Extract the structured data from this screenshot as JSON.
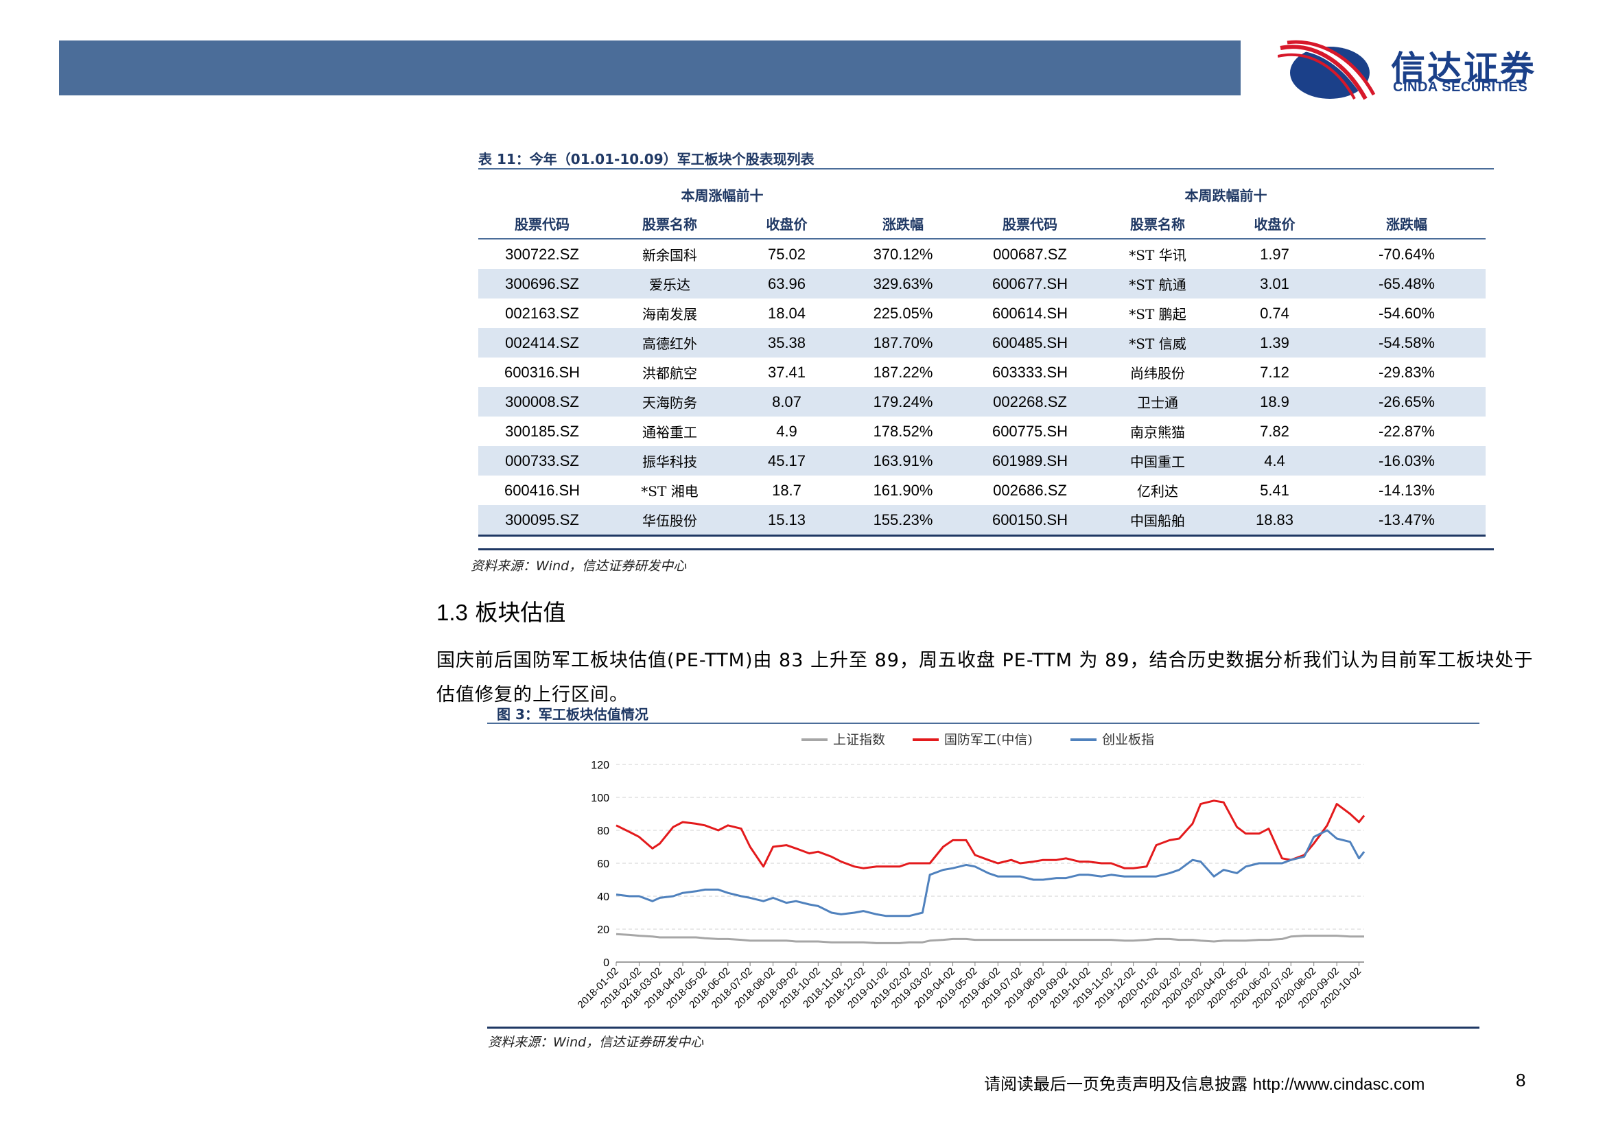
{
  "brand": {
    "name_cn": "信达证券",
    "name_en": "CINDA SECURITIES",
    "colors": {
      "header_bar": "#4b6d99",
      "logo_red": "#d7182a",
      "logo_blue": "#1b4089",
      "table_shade": "#dbe5f1"
    }
  },
  "table": {
    "caption": "表 11：今年（01.01-10.09）军工板块个股表现列表",
    "group_left": "本周涨幅前十",
    "group_right": "本周跌幅前十",
    "columns": [
      "股票代码",
      "股票名称",
      "收盘价",
      "涨跌幅",
      "股票代码",
      "股票名称",
      "收盘价",
      "涨跌幅"
    ],
    "rows": [
      [
        "300722.SZ",
        "新余国科",
        "75.02",
        "370.12%",
        "000687.SZ",
        "*ST 华讯",
        "1.97",
        "-70.64%"
      ],
      [
        "300696.SZ",
        "爱乐达",
        "63.96",
        "329.63%",
        "600677.SH",
        "*ST 航通",
        "3.01",
        "-65.48%"
      ],
      [
        "002163.SZ",
        "海南发展",
        "18.04",
        "225.05%",
        "600614.SH",
        "*ST 鹏起",
        "0.74",
        "-54.60%"
      ],
      [
        "002414.SZ",
        "高德红外",
        "35.38",
        "187.70%",
        "600485.SH",
        "*ST 信威",
        "1.39",
        "-54.58%"
      ],
      [
        "600316.SH",
        "洪都航空",
        "37.41",
        "187.22%",
        "603333.SH",
        "尚纬股份",
        "7.12",
        "-29.83%"
      ],
      [
        "300008.SZ",
        "天海防务",
        "8.07",
        "179.24%",
        "002268.SZ",
        "卫士通",
        "18.9",
        "-26.65%"
      ],
      [
        "300185.SZ",
        "通裕重工",
        "4.9",
        "178.52%",
        "600775.SH",
        "南京熊猫",
        "7.82",
        "-22.87%"
      ],
      [
        "000733.SZ",
        "振华科技",
        "45.17",
        "163.91%",
        "601989.SH",
        "中国重工",
        "4.4",
        "-16.03%"
      ],
      [
        "600416.SH",
        "*ST 湘电",
        "18.7",
        "161.90%",
        "002686.SZ",
        "亿利达",
        "5.41",
        "-14.13%"
      ],
      [
        "300095.SZ",
        "华伍股份",
        "15.13",
        "155.23%",
        "600150.SH",
        "中国船舶",
        "18.83",
        "-13.47%"
      ]
    ],
    "source": "资料来源：Wind，信达证券研发中心"
  },
  "section": {
    "number": "1.3",
    "title": "板块估值",
    "paragraph": "国庆前后国防军工板块估值(PE-TTM)由 83 上升至 89，周五收盘 PE-TTM 为 89，结合历史数据分析我们认为目前军工板块处于估值修复的上行区间。"
  },
  "figure": {
    "caption": "图 3：军工板块估值情况",
    "source": "资料来源：Wind，信达证券研发中心"
  },
  "chart_data": {
    "type": "line",
    "title": "",
    "xlabel": "",
    "ylabel": "",
    "ylim": [
      0,
      120
    ],
    "yticks": [
      0,
      20,
      40,
      60,
      80,
      100,
      120
    ],
    "grid": "horizontal dashed",
    "legend_position": "top",
    "x_tick_labels": [
      "2018-01-02",
      "2018-02-02",
      "2018-03-02",
      "2018-04-02",
      "2018-05-02",
      "2018-06-02",
      "2018-07-02",
      "2018-08-02",
      "2018-09-02",
      "2018-10-02",
      "2018-11-02",
      "2018-12-02",
      "2019-01-02",
      "2019-02-02",
      "2019-03-02",
      "2019-04-02",
      "2019-05-02",
      "2019-06-02",
      "2019-07-02",
      "2019-08-02",
      "2019-09-02",
      "2019-10-02",
      "2019-11-02",
      "2019-12-02",
      "2020-01-02",
      "2020-02-02",
      "2020-03-02",
      "2020-04-02",
      "2020-05-02",
      "2020-06-02",
      "2020-07-02",
      "2020-08-02",
      "2020-09-02",
      "2020-10-02"
    ],
    "x": [
      "2018-01-02",
      "2018-01-20",
      "2018-02-02",
      "2018-02-20",
      "2018-03-02",
      "2018-03-20",
      "2018-04-02",
      "2018-04-20",
      "2018-05-02",
      "2018-05-20",
      "2018-06-02",
      "2018-06-20",
      "2018-07-02",
      "2018-07-20",
      "2018-08-02",
      "2018-08-20",
      "2018-09-02",
      "2018-09-20",
      "2018-10-02",
      "2018-10-20",
      "2018-11-02",
      "2018-11-20",
      "2018-12-02",
      "2018-12-20",
      "2019-01-02",
      "2019-01-20",
      "2019-02-02",
      "2019-02-20",
      "2019-03-02",
      "2019-03-20",
      "2019-04-02",
      "2019-04-20",
      "2019-05-02",
      "2019-05-20",
      "2019-06-02",
      "2019-06-20",
      "2019-07-02",
      "2019-07-20",
      "2019-08-02",
      "2019-08-20",
      "2019-09-02",
      "2019-09-20",
      "2019-10-02",
      "2019-10-20",
      "2019-11-02",
      "2019-11-20",
      "2019-12-02",
      "2019-12-20",
      "2020-01-02",
      "2020-01-20",
      "2020-02-02",
      "2020-02-20",
      "2020-03-02",
      "2020-03-20",
      "2020-04-02",
      "2020-04-20",
      "2020-05-02",
      "2020-05-20",
      "2020-06-02",
      "2020-06-20",
      "2020-07-02",
      "2020-07-20",
      "2020-08-02",
      "2020-08-20",
      "2020-09-02",
      "2020-09-20",
      "2020-10-02",
      "2020-10-09"
    ],
    "series": [
      {
        "name": "上证指数",
        "color": "#a6a6a6",
        "values": [
          17,
          16.5,
          16,
          15.5,
          15,
          15,
          15,
          15,
          14.5,
          14,
          14,
          13.5,
          13,
          13,
          13,
          13,
          12.5,
          12.5,
          12.5,
          12,
          12,
          12,
          12,
          11.5,
          11.5,
          11.5,
          12,
          12,
          13,
          13.5,
          14,
          14,
          13.5,
          13.5,
          13.5,
          13.5,
          13.5,
          13.5,
          13.5,
          13.5,
          13.5,
          13.5,
          13.5,
          13.5,
          13.5,
          13,
          13,
          13.5,
          14,
          14,
          13.5,
          13.5,
          13,
          12.5,
          13,
          13,
          13,
          13.5,
          13.5,
          14,
          15.5,
          16,
          16,
          16,
          16,
          15.5,
          15.5,
          15.5
        ]
      },
      {
        "name": "国防军工(中信)",
        "color": "#e31a1c",
        "values": [
          83,
          79,
          76,
          69,
          72,
          82,
          85,
          84,
          83,
          80,
          83,
          81,
          70,
          58,
          70,
          71,
          69,
          66,
          67,
          64,
          61,
          58,
          57,
          58,
          58,
          58,
          60,
          60,
          60,
          70,
          74,
          74,
          65,
          62,
          60,
          62,
          60,
          61,
          62,
          62,
          63,
          61,
          61,
          60,
          60,
          57,
          57,
          58,
          71,
          74,
          75,
          84,
          96,
          98,
          97,
          82,
          78,
          78,
          81,
          63,
          62,
          65,
          72,
          83,
          96,
          90,
          85,
          89
        ]
      },
      {
        "name": "创业板指",
        "color": "#4f81bd",
        "values": [
          41,
          40,
          40,
          37,
          39,
          40,
          42,
          43,
          44,
          44,
          42,
          40,
          39,
          37,
          39,
          36,
          37,
          35,
          34,
          30,
          29,
          30,
          31,
          29,
          28,
          28,
          28,
          30,
          53,
          56,
          57,
          59,
          58,
          54,
          52,
          52,
          52,
          50,
          50,
          51,
          51,
          53,
          53,
          52,
          53,
          52,
          52,
          52,
          52,
          54,
          56,
          62,
          61,
          52,
          56,
          54,
          58,
          60,
          60,
          60,
          62,
          64,
          76,
          80,
          75,
          73,
          63,
          67
        ]
      }
    ]
  },
  "footer": {
    "disclaimer": "请阅读最后一页免责声明及信息披露",
    "url": "http://www.cindasc.com",
    "page_number": "8"
  }
}
